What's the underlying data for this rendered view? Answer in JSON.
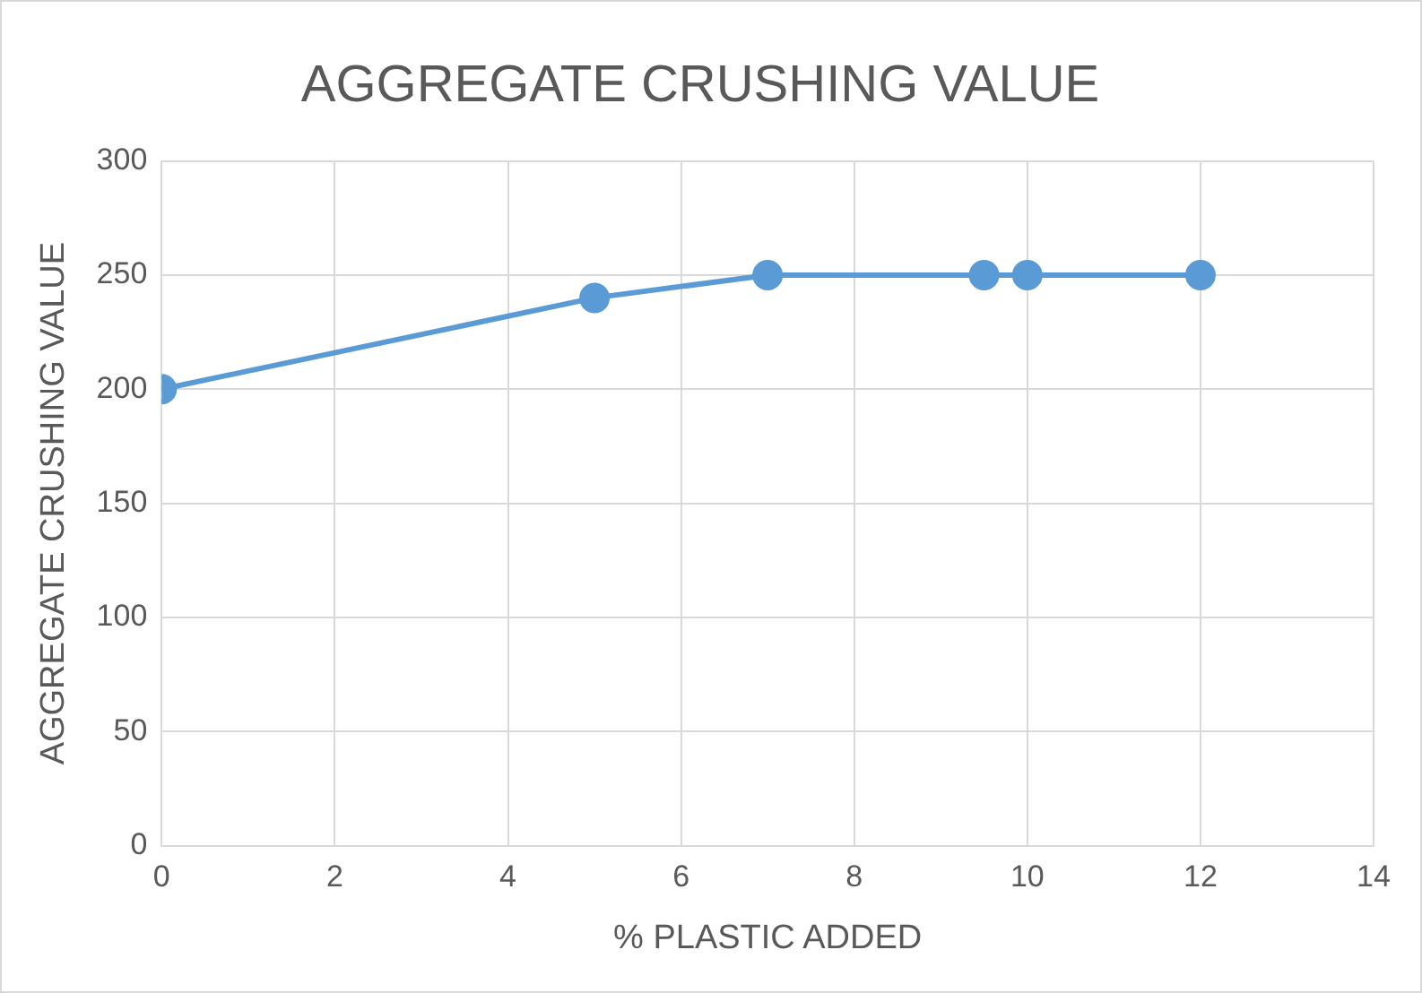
{
  "chart_data": {
    "type": "line",
    "title": "AGGREGATE CRUSHING VALUE",
    "xlabel": "% PLASTIC ADDED",
    "ylabel": "AGGREGATE CRUSHING VALUE",
    "series": [
      {
        "color": "#5b9bd5",
        "x": [
          0,
          5,
          7,
          9.5,
          10,
          12
        ],
        "values": [
          200,
          240,
          250,
          250,
          250,
          250
        ]
      }
    ],
    "xlim": [
      0,
      14
    ],
    "xticks": [
      0,
      2,
      4,
      6,
      8,
      10,
      12,
      14
    ],
    "ylim": [
      0,
      300
    ],
    "yticks": [
      0,
      50,
      100,
      150,
      200,
      250,
      300
    ],
    "grid": true,
    "legend": false,
    "marker": "circle",
    "line_style": "solid"
  }
}
